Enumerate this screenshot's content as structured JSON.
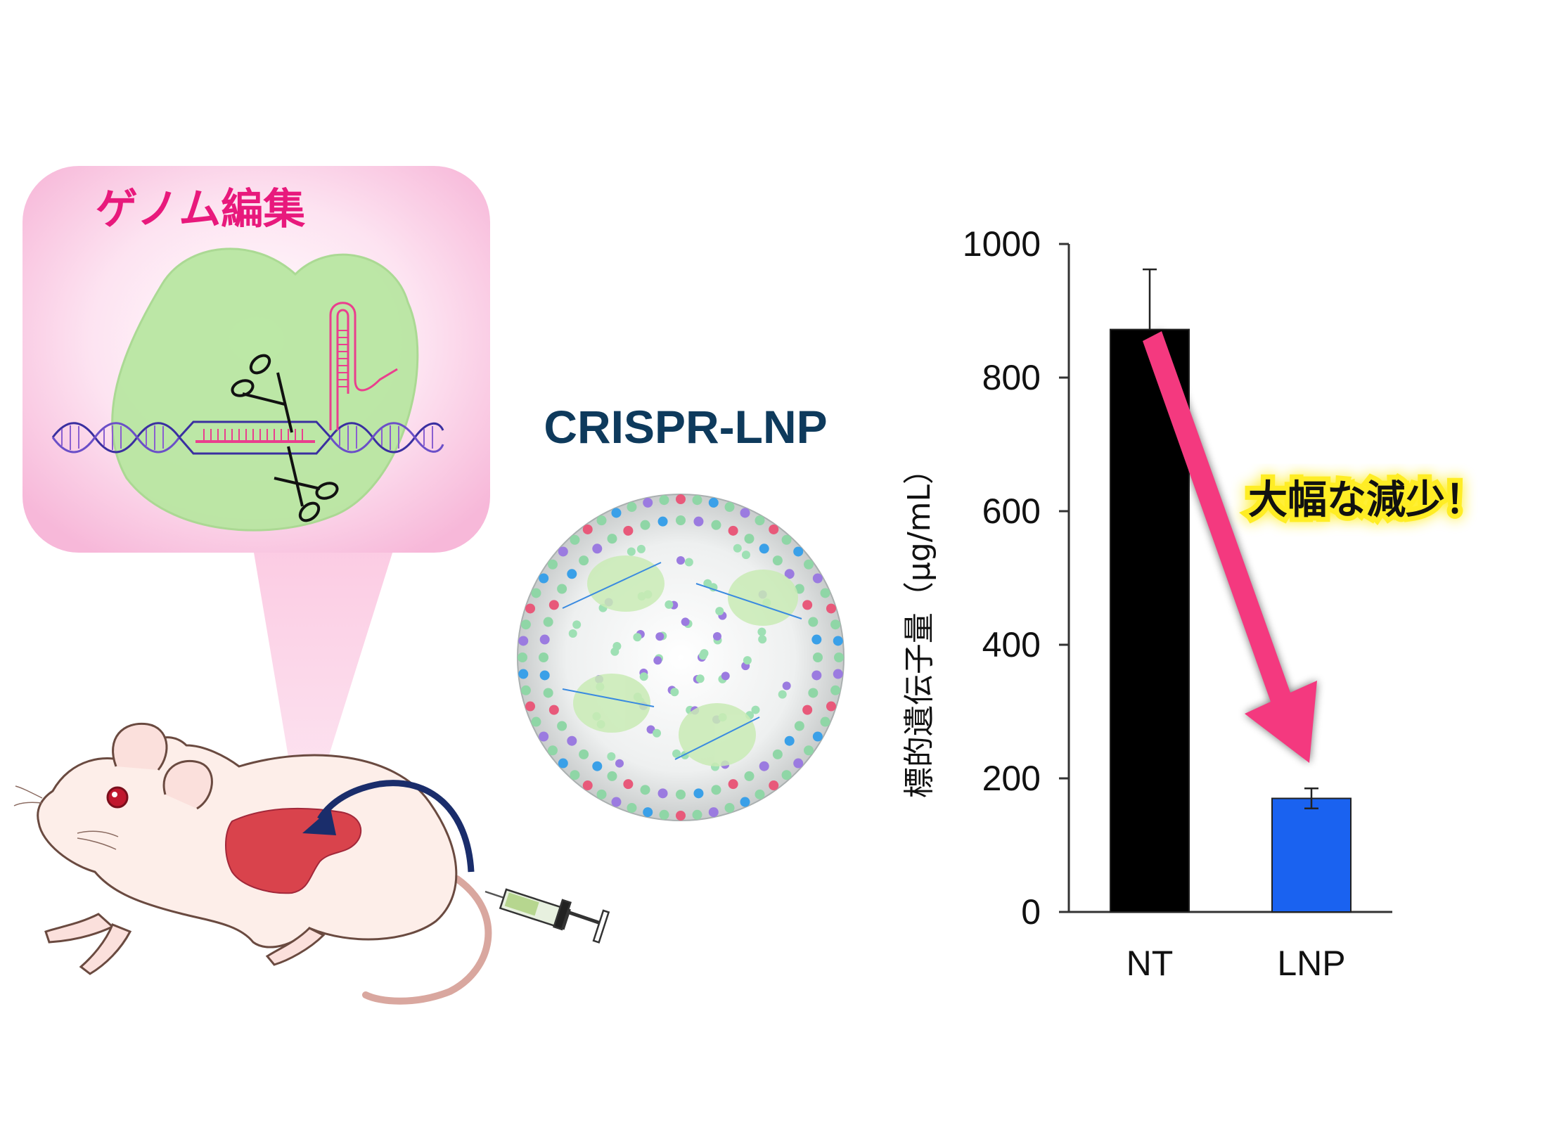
{
  "bubble": {
    "title": "ゲノム編集",
    "title_color": "#e8197c"
  },
  "particle": {
    "label": "CRISPR-LNP",
    "label_color": "#0e3a5c"
  },
  "chart_data": {
    "type": "bar",
    "categories": [
      "NT",
      "LNP"
    ],
    "values": [
      872,
      170
    ],
    "errors": [
      90,
      15
    ],
    "colors": [
      "#000000",
      "#1a62f0"
    ],
    "ylabel": "標的遺伝子量（μg/mL）",
    "ylim": [
      0,
      1000
    ],
    "yticks": [
      0,
      200,
      400,
      600,
      800,
      1000
    ],
    "annotation": "大幅な減少！",
    "annotation_color": "#ffeb00",
    "arrow_color": "#f4397f"
  }
}
